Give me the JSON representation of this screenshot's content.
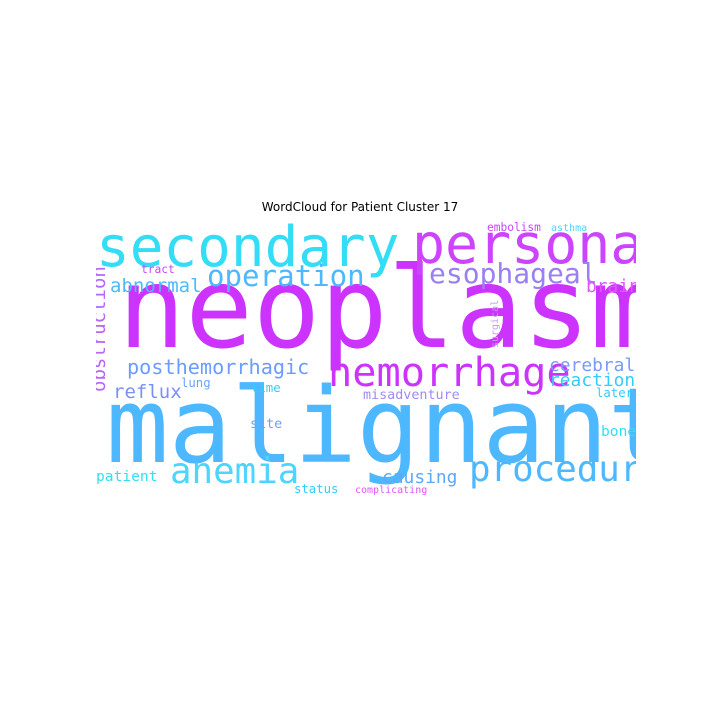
{
  "chart_data": {
    "type": "wordcloud",
    "title": "WordCloud for Patient Cluster 17",
    "words": [
      {
        "text": "neoplasm",
        "weight": 1.0,
        "color": "#cc33ff"
      },
      {
        "text": "malignant",
        "weight": 0.93,
        "color": "#4db8ff"
      },
      {
        "text": "secondary",
        "weight": 0.5,
        "color": "#33ddf5"
      },
      {
        "text": "personal",
        "weight": 0.49,
        "color": "#cc44ff"
      },
      {
        "text": "hemorrhage",
        "weight": 0.36,
        "color": "#cc33ff"
      },
      {
        "text": "procedure",
        "weight": 0.32,
        "color": "#4db8ff"
      },
      {
        "text": "anemia",
        "weight": 0.32,
        "color": "#4dd4ff"
      },
      {
        "text": "operation",
        "weight": 0.26,
        "color": "#4db8ff"
      },
      {
        "text": "esophageal",
        "weight": 0.25,
        "color": "#9a7ff5"
      },
      {
        "text": "posthemorrhagic",
        "weight": 0.18,
        "color": "#6b9cff"
      },
      {
        "text": "obstruction",
        "weight": 0.17,
        "color": "#b866ff"
      },
      {
        "text": "abnormal",
        "weight": 0.17,
        "color": "#4dbaff"
      },
      {
        "text": "reflux",
        "weight": 0.17,
        "color": "#7b8ff8"
      },
      {
        "text": "cerebral",
        "weight": 0.16,
        "color": "#7a9af8"
      },
      {
        "text": "reaction",
        "weight": 0.16,
        "color": "#33ccff"
      },
      {
        "text": "causing",
        "weight": 0.16,
        "color": "#5ba8ff"
      },
      {
        "text": "brain",
        "weight": 0.16,
        "color": "#e055ff"
      },
      {
        "text": "misadventure",
        "weight": 0.12,
        "color": "#a08af5"
      },
      {
        "text": "patient",
        "weight": 0.13,
        "color": "#33e0f0"
      },
      {
        "text": "bone",
        "weight": 0.13,
        "color": "#33e0f0"
      },
      {
        "text": "site",
        "weight": 0.12,
        "color": "#6fa0ff"
      },
      {
        "text": "lung",
        "weight": 0.11,
        "color": "#6fa0ff"
      },
      {
        "text": "time",
        "weight": 0.11,
        "color": "#33ccff"
      },
      {
        "text": "later",
        "weight": 0.11,
        "color": "#33ccff"
      },
      {
        "text": "status",
        "weight": 0.11,
        "color": "#33ccff"
      },
      {
        "text": "tract",
        "weight": 0.1,
        "color": "#cc44ff"
      },
      {
        "text": "embolism",
        "weight": 0.1,
        "color": "#cc44ff"
      },
      {
        "text": "surgical",
        "weight": 0.08,
        "color": "#c29df5"
      },
      {
        "text": "complicating",
        "weight": 0.08,
        "color": "#e055ff"
      },
      {
        "text": "asthma",
        "weight": 0.08,
        "color": "#4dd4ff"
      }
    ]
  }
}
